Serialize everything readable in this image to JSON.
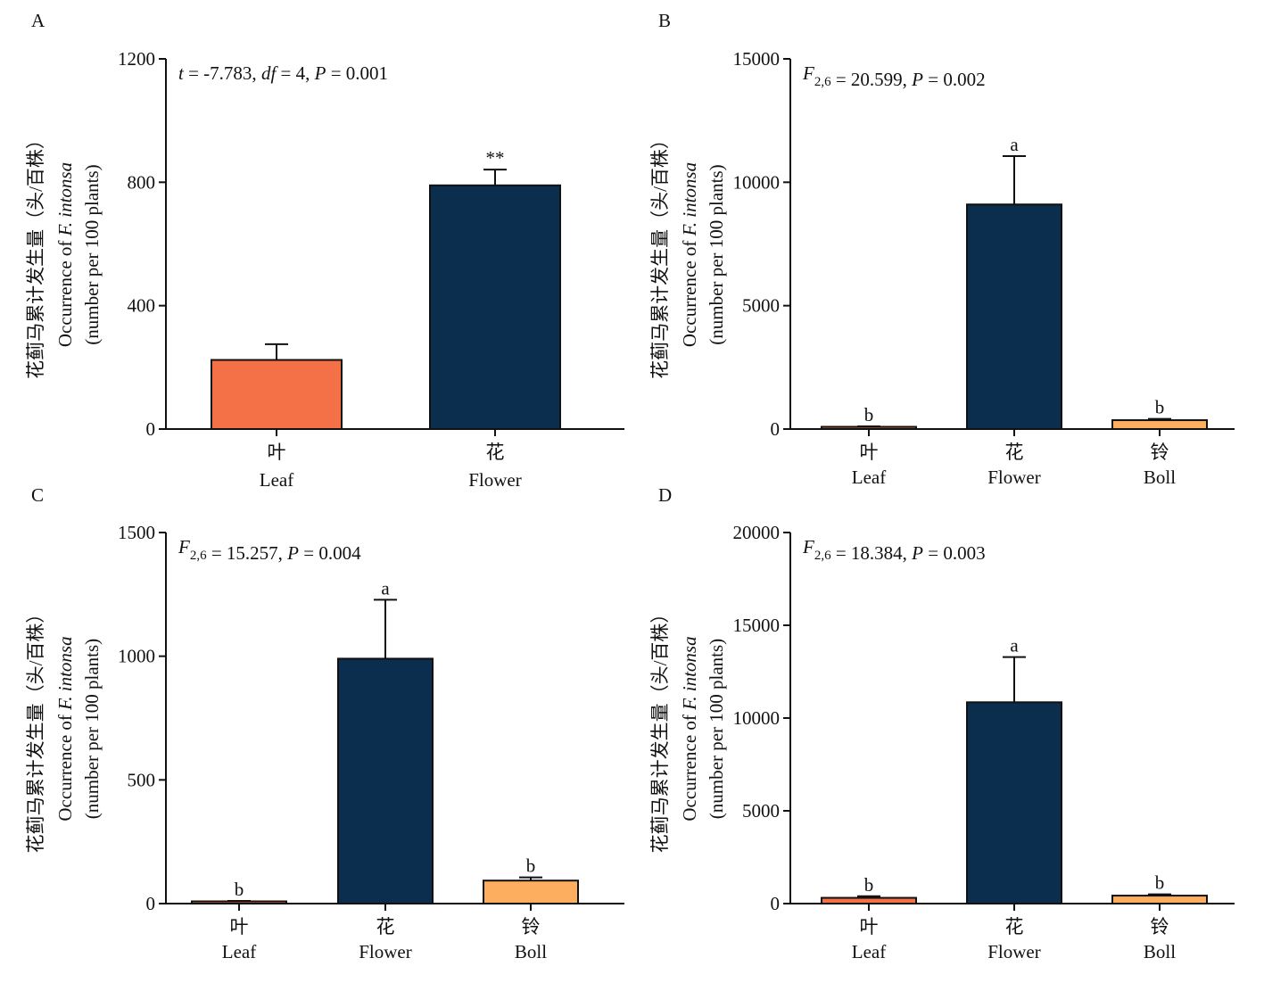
{
  "chart_data": [
    {
      "panel": "A",
      "type": "bar",
      "stat_text": {
        "parts": [
          {
            "t": "t",
            "i": true
          },
          {
            "t": " = -7.783, "
          },
          {
            "t": "df",
            "i": true
          },
          {
            "t": " = 4, "
          },
          {
            "t": "P",
            "i": true
          },
          {
            "t": " = 0.001"
          }
        ]
      },
      "ylabel": [
        "花蓟马累计发生量（头/百株）",
        "Occurrence of F. intonsa",
        "(number per 100 plants)"
      ],
      "ylim": [
        0,
        1200
      ],
      "yticks": [
        0,
        400,
        800,
        1200
      ],
      "categories": [
        {
          "cn": "叶",
          "en": "Leaf"
        },
        {
          "cn": "花",
          "en": "Flower"
        }
      ],
      "values": [
        224,
        790
      ],
      "errors_upper": [
        275,
        841
      ],
      "significance": [
        "",
        "**"
      ],
      "colors": [
        "#F47046",
        "#0B2D4E"
      ]
    },
    {
      "panel": "B",
      "type": "bar",
      "stat_text": {
        "parts": [
          {
            "t": "F",
            "i": true,
            "sub": "2,6"
          },
          {
            "t": " = 20.599,  "
          },
          {
            "t": "P",
            "i": true
          },
          {
            "t": " = 0.002"
          }
        ]
      },
      "ylabel": [
        "花蓟马累计发生量（头/百株）",
        "Occurrence of F. intonsa",
        "(number per 100 plants)"
      ],
      "ylim": [
        0,
        15000
      ],
      "yticks": [
        0,
        5000,
        10000,
        15000
      ],
      "categories": [
        {
          "cn": "叶",
          "en": "Leaf"
        },
        {
          "cn": "花",
          "en": "Flower"
        },
        {
          "cn": "铃",
          "en": "Boll"
        }
      ],
      "values": [
        90,
        9100,
        360
      ],
      "errors_upper": [
        110,
        11060,
        410
      ],
      "significance": [
        "b",
        "a",
        "b"
      ],
      "colors": [
        "#F47046",
        "#0B2D4E",
        "#FDAE5E"
      ]
    },
    {
      "panel": "C",
      "type": "bar",
      "stat_text": {
        "parts": [
          {
            "t": "F",
            "i": true,
            "sub": "2,6"
          },
          {
            "t": " = 15.257,  "
          },
          {
            "t": "P",
            "i": true
          },
          {
            "t": " = 0.004"
          }
        ]
      },
      "ylabel": [
        "花蓟马累计发生量（头/百株）",
        "Occurrence of F. intonsa",
        "(number per 100 plants)"
      ],
      "ylim": [
        0,
        1500
      ],
      "yticks": [
        0,
        500,
        1000,
        1500
      ],
      "categories": [
        {
          "cn": "叶",
          "en": "Leaf"
        },
        {
          "cn": "花",
          "en": "Flower"
        },
        {
          "cn": "铃",
          "en": "Boll"
        }
      ],
      "values": [
        9,
        990,
        93
      ],
      "errors_upper": [
        11,
        1228,
        106
      ],
      "significance": [
        "b",
        "a",
        "b"
      ],
      "colors": [
        "#F47046",
        "#0B2D4E",
        "#FDAE5E"
      ]
    },
    {
      "panel": "D",
      "type": "bar",
      "stat_text": {
        "parts": [
          {
            "t": "F",
            "i": true,
            "sub": "2,6"
          },
          {
            "t": " = 18.384,  "
          },
          {
            "t": "P",
            "i": true
          },
          {
            "t": " = 0.003"
          }
        ]
      },
      "ylabel": [
        "花蓟马累计发生量（头/百株）",
        "Occurrence of F. intonsa",
        "(number per 100 plants)"
      ],
      "ylim": [
        0,
        20000
      ],
      "yticks": [
        0,
        5000,
        10000,
        15000,
        20000
      ],
      "categories": [
        {
          "cn": "叶",
          "en": "Leaf"
        },
        {
          "cn": "花",
          "en": "Flower"
        },
        {
          "cn": "铃",
          "en": "Boll"
        }
      ],
      "values": [
        310,
        10850,
        430
      ],
      "errors_upper": [
        395,
        13290,
        500
      ],
      "significance": [
        "b",
        "a",
        "b"
      ],
      "colors": [
        "#F47046",
        "#0B2D4E",
        "#FDAE5E"
      ]
    }
  ]
}
